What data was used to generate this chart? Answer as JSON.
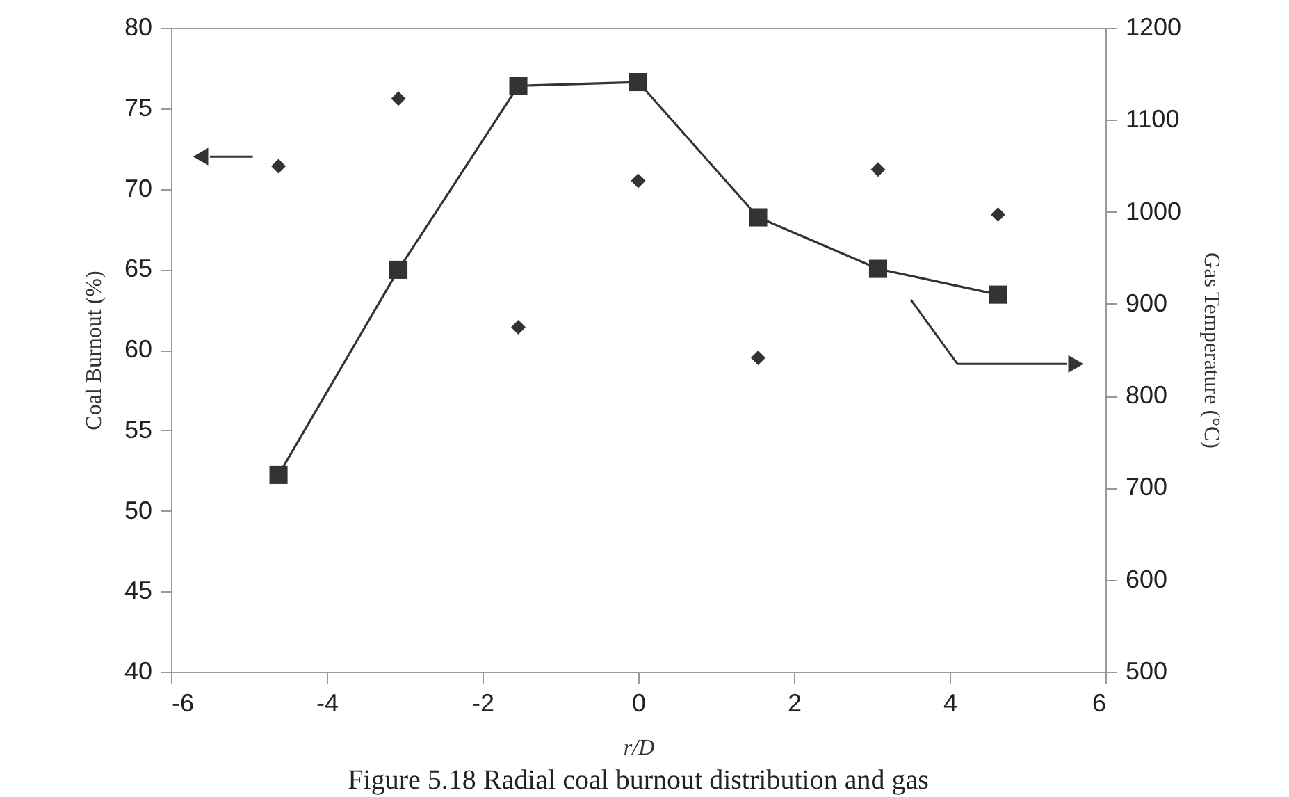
{
  "chart_data": {
    "type": "scatter",
    "xlabel": "r/D",
    "ylabel": "Coal Burnout (%)",
    "y2label": "Gas Temperature (°C)",
    "x": [
      -4.62,
      -3.08,
      -1.54,
      0,
      1.54,
      3.08,
      4.62
    ],
    "series": [
      {
        "type": "scatter",
        "color": "#333333",
        "marker": "diamond",
        "values": [
          71.4,
          75.6,
          61.4,
          70.5,
          59.5,
          71.2,
          68.4
        ]
      },
      {
        "type": "line",
        "axis": "y2",
        "color": "#333333",
        "marker": "square",
        "values": [
          714,
          937,
          1137,
          1141,
          994,
          938,
          910
        ]
      }
    ],
    "xlim": [
      -6,
      6
    ],
    "xticks": [
      -6,
      -4,
      -2,
      0,
      2,
      4,
      6
    ],
    "ylim": [
      40,
      80
    ],
    "yticks": [
      40,
      45,
      50,
      55,
      60,
      65,
      70,
      75,
      80
    ],
    "y2lim": [
      500,
      1200
    ],
    "y2ticks": [
      500,
      600,
      700,
      800,
      900,
      1000,
      1100,
      1200
    ],
    "annotations": [
      "Figure 5.18  Radial coal burnout distribution and gas"
    ]
  }
}
